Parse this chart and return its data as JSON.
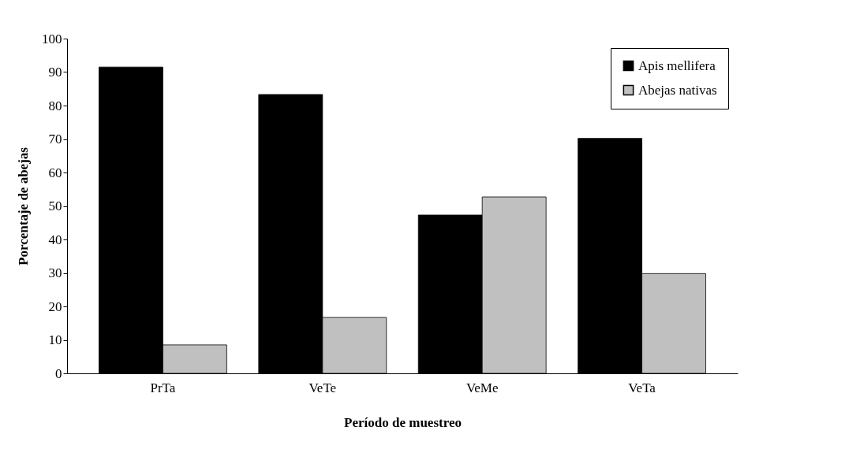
{
  "chart_data": {
    "type": "bar",
    "xlabel": "Período de muestreo",
    "ylabel": "Porcentaje de abejas",
    "categories": [
      "PrTa",
      "VeTe",
      "VeMe",
      "VeTa"
    ],
    "series": [
      {
        "name": "Apis mellifera",
        "color": "#000000",
        "values": [
          91.5,
          83.3,
          47.3,
          70.2
        ]
      },
      {
        "name": "Abejas nativas",
        "color": "#c0c0c0",
        "values": [
          8.5,
          16.7,
          52.7,
          29.8
        ]
      }
    ],
    "ylim": [
      0,
      100
    ],
    "yticks": [
      0,
      10,
      20,
      30,
      40,
      50,
      60,
      70,
      80,
      90,
      100
    ],
    "grid": false,
    "legend": "top right"
  }
}
